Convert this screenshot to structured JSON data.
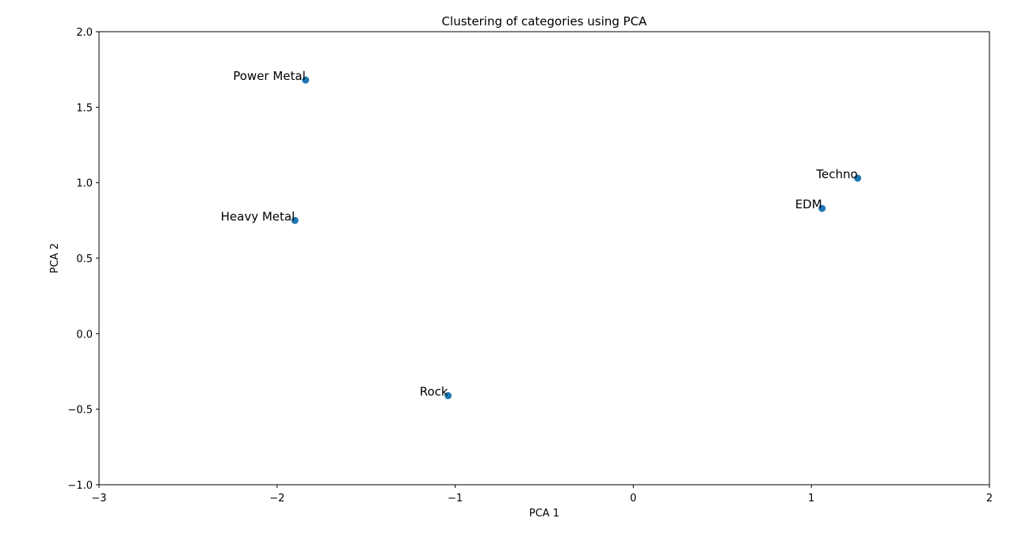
{
  "chart_data": {
    "type": "scatter",
    "title": "Clustering of categories using PCA",
    "xlabel": "PCA 1",
    "ylabel": "PCA 2",
    "xlim": [
      -3,
      2
    ],
    "ylim": [
      -1,
      2
    ],
    "xticks": [
      -3,
      -2,
      -1,
      0,
      1,
      2
    ],
    "xtick_labels": [
      "−3",
      "−2",
      "−1",
      "0",
      "1",
      "2"
    ],
    "yticks": [
      -1.0,
      -0.5,
      0.0,
      0.5,
      1.0,
      1.5,
      2.0
    ],
    "ytick_labels": [
      "−1.0",
      "−0.5",
      "0.0",
      "0.5",
      "1.0",
      "1.5",
      "2.0"
    ],
    "grid": false,
    "point_color": "#1f77b4",
    "points": [
      {
        "label": "Power Metal",
        "x": -1.84,
        "y": 1.68
      },
      {
        "label": "Heavy Metal",
        "x": -1.9,
        "y": 0.75
      },
      {
        "label": "Rock",
        "x": -1.04,
        "y": -0.41
      },
      {
        "label": "Techno",
        "x": 1.26,
        "y": 1.03
      },
      {
        "label": "EDM",
        "x": 1.06,
        "y": 0.83
      }
    ]
  }
}
